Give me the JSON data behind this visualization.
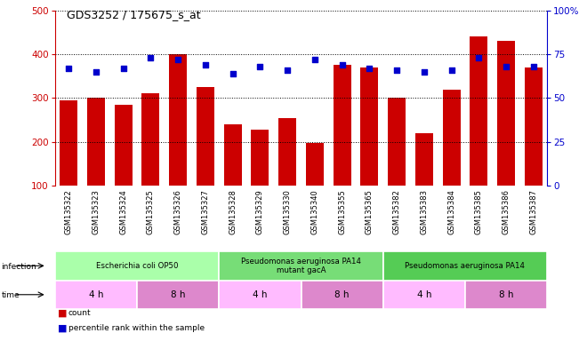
{
  "title": "GDS3252 / 175675_s_at",
  "samples": [
    "GSM135322",
    "GSM135323",
    "GSM135324",
    "GSM135325",
    "GSM135326",
    "GSM135327",
    "GSM135328",
    "GSM135329",
    "GSM135330",
    "GSM135340",
    "GSM135355",
    "GSM135365",
    "GSM135382",
    "GSM135383",
    "GSM135384",
    "GSM135385",
    "GSM135386",
    "GSM135387"
  ],
  "counts": [
    295,
    300,
    285,
    310,
    400,
    325,
    240,
    228,
    255,
    198,
    375,
    370,
    300,
    220,
    320,
    440,
    430,
    370
  ],
  "percentile_ranks": [
    67,
    65,
    67,
    73,
    72,
    69,
    64,
    68,
    66,
    72,
    69,
    67,
    66,
    65,
    66,
    73,
    68,
    68
  ],
  "ylim_left": [
    100,
    500
  ],
  "ylim_right": [
    0,
    100
  ],
  "yticks_left": [
    100,
    200,
    300,
    400,
    500
  ],
  "yticks_right": [
    0,
    25,
    50,
    75,
    100
  ],
  "bar_color": "#cc0000",
  "dot_color": "#0000cc",
  "left_axis_color": "#cc0000",
  "right_axis_color": "#0000cc",
  "bg_color": "#ffffff",
  "tick_label_area_color": "#cccccc",
  "infection_colors": [
    "#aaffaa",
    "#77dd77",
    "#55cc55"
  ],
  "time_color_4h": "#ffbbff",
  "time_color_8h": "#dd88cc",
  "infection_groups": [
    {
      "label": "Escherichia coli OP50",
      "start": 0,
      "end": 6
    },
    {
      "label": "Pseudomonas aeruginosa PA14\nmutant gacA",
      "start": 6,
      "end": 12
    },
    {
      "label": "Pseudomonas aeruginosa PA14",
      "start": 12,
      "end": 18
    }
  ],
  "time_groups": [
    {
      "label": "4 h",
      "start": 0,
      "end": 3
    },
    {
      "label": "8 h",
      "start": 3,
      "end": 6
    },
    {
      "label": "4 h",
      "start": 6,
      "end": 9
    },
    {
      "label": "8 h",
      "start": 9,
      "end": 12
    },
    {
      "label": "4 h",
      "start": 12,
      "end": 15
    },
    {
      "label": "8 h",
      "start": 15,
      "end": 18
    }
  ]
}
